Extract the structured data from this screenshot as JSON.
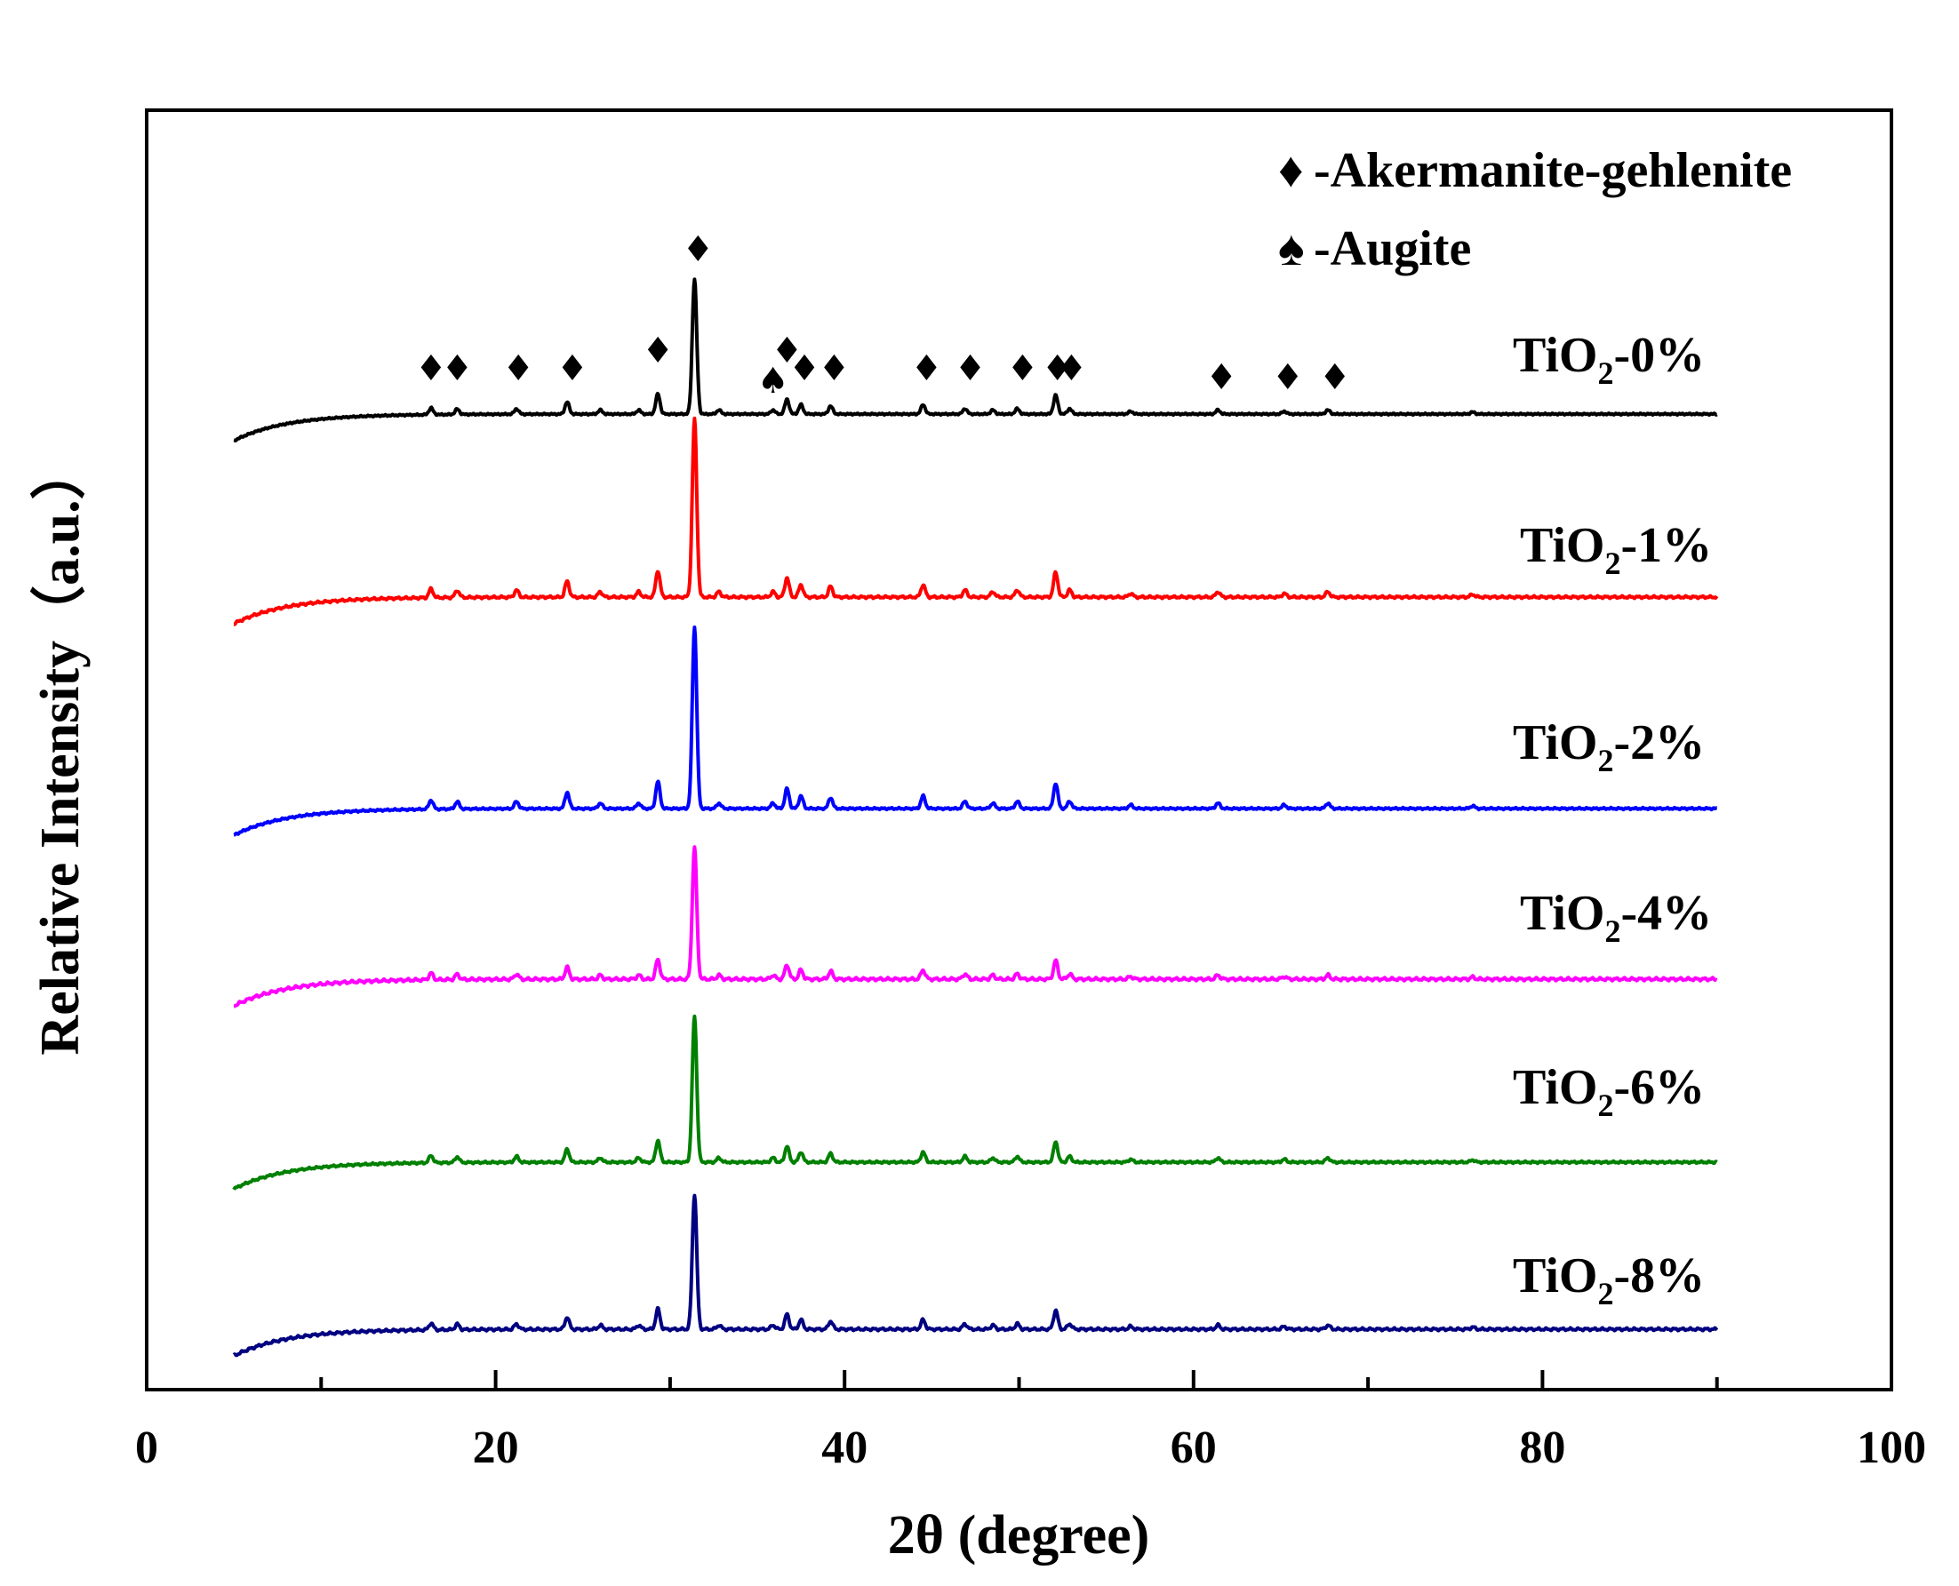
{
  "chart_data": {
    "type": "line",
    "title": "",
    "xlabel": "2θ (degree)",
    "ylabel": "Relative Intensity（a.u.）",
    "xlim": [
      0,
      100
    ],
    "x_ticks": [
      "0",
      "20",
      "40",
      "60",
      "80",
      "100"
    ],
    "y_ticks": [],
    "grid": false,
    "legend_position": "top-right",
    "legend": [
      {
        "symbol": "♦",
        "label": "-Akermanite-gehlenite",
        "name": "akermanite-gehlenite"
      },
      {
        "symbol": "♠",
        "label": "-Augite",
        "name": "augite"
      }
    ],
    "x_range": [
      5,
      90
    ],
    "peaks": [
      {
        "x": 16.3,
        "h": 0.05
      },
      {
        "x": 17.8,
        "h": 0.04
      },
      {
        "x": 21.2,
        "h": 0.04
      },
      {
        "x": 24.1,
        "h": 0.09
      },
      {
        "x": 26.0,
        "h": 0.03
      },
      {
        "x": 28.2,
        "h": 0.03
      },
      {
        "x": 29.3,
        "h": 0.15
      },
      {
        "x": 31.4,
        "h": 1.0
      },
      {
        "x": 32.8,
        "h": 0.03
      },
      {
        "x": 35.9,
        "h": 0.03
      },
      {
        "x": 36.7,
        "h": 0.11
      },
      {
        "x": 37.5,
        "h": 0.07
      },
      {
        "x": 39.2,
        "h": 0.06
      },
      {
        "x": 44.5,
        "h": 0.07
      },
      {
        "x": 46.9,
        "h": 0.04
      },
      {
        "x": 48.5,
        "h": 0.03
      },
      {
        "x": 49.9,
        "h": 0.04
      },
      {
        "x": 52.1,
        "h": 0.14
      },
      {
        "x": 52.9,
        "h": 0.04
      },
      {
        "x": 56.4,
        "h": 0.02
      },
      {
        "x": 61.4,
        "h": 0.03
      },
      {
        "x": 65.2,
        "h": 0.02
      },
      {
        "x": 67.7,
        "h": 0.03
      },
      {
        "x": 76.0,
        "h": 0.015
      }
    ],
    "series": [
      {
        "name": "TiO₂-0%",
        "label_main": "TiO",
        "label_sub": "2",
        "label_tail": "-0%",
        "color": "#000000"
      },
      {
        "name": "TiO₂-1%",
        "label_main": "TiO",
        "label_sub": "2",
        "label_tail": "-1%",
        "color": "#ff0000"
      },
      {
        "name": "TiO₂-2%",
        "label_main": "TiO",
        "label_sub": "2",
        "label_tail": "-2%",
        "color": "#0000ff"
      },
      {
        "name": "TiO₂-4%",
        "label_main": "TiO",
        "label_sub": "2",
        "label_tail": "-4%",
        "color": "#ff00ff"
      },
      {
        "name": "TiO₂-6%",
        "label_main": "TiO",
        "label_sub": "2",
        "label_tail": "-6%",
        "color": "#008000"
      },
      {
        "name": "TiO₂-8%",
        "label_main": "TiO",
        "label_sub": "2",
        "label_tail": "-8%",
        "color": "#000080"
      }
    ],
    "peak_markers": [
      {
        "x": 16.3,
        "symbol": "♦"
      },
      {
        "x": 17.8,
        "symbol": "♦"
      },
      {
        "x": 21.3,
        "symbol": "♦"
      },
      {
        "x": 24.4,
        "symbol": "♦"
      },
      {
        "x": 29.3,
        "symbol": "♦"
      },
      {
        "x": 31.6,
        "symbol": "♦"
      },
      {
        "x": 35.9,
        "symbol": "♠"
      },
      {
        "x": 36.7,
        "symbol": "♦"
      },
      {
        "x": 37.7,
        "symbol": "♦"
      },
      {
        "x": 39.4,
        "symbol": "♦"
      },
      {
        "x": 44.7,
        "symbol": "♦"
      },
      {
        "x": 47.2,
        "symbol": "♦"
      },
      {
        "x": 50.2,
        "symbol": "♦"
      },
      {
        "x": 52.2,
        "symbol": "♦"
      },
      {
        "x": 53.0,
        "symbol": "♦"
      },
      {
        "x": 61.6,
        "symbol": "♦"
      },
      {
        "x": 65.4,
        "symbol": "♦"
      },
      {
        "x": 68.1,
        "symbol": "♦"
      }
    ]
  }
}
